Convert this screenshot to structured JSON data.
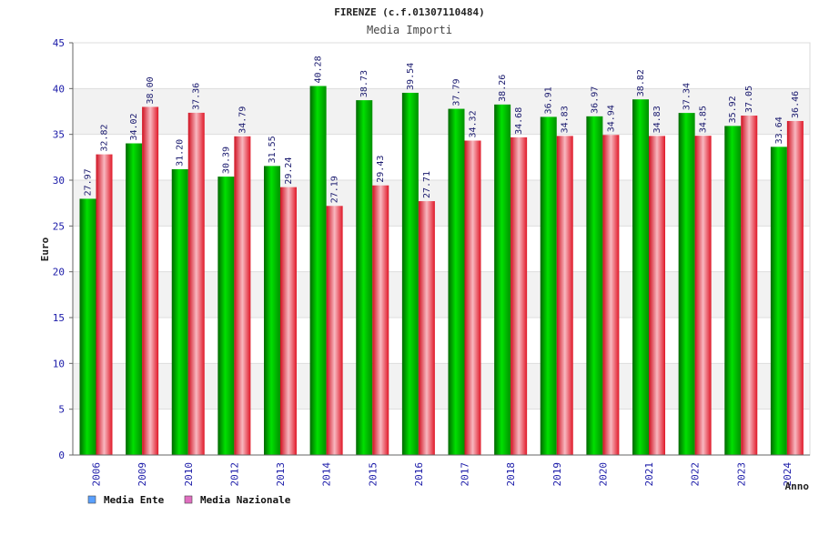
{
  "chart_data": {
    "type": "bar",
    "title": "FIRENZE (c.f.01307110484)",
    "subtitle": "Media Importi",
    "xlabel": "Anno",
    "ylabel": "Euro",
    "ylim": [
      0,
      45
    ],
    "yticks": [
      0,
      5,
      10,
      15,
      20,
      25,
      30,
      35,
      40,
      45
    ],
    "grid": true,
    "legend_position": "bottom-left",
    "categories": [
      "2006",
      "2009",
      "2010",
      "2012",
      "2013",
      "2014",
      "2015",
      "2016",
      "2017",
      "2018",
      "2019",
      "2020",
      "2021",
      "2022",
      "2023",
      "2024"
    ],
    "series": [
      {
        "name": "Media Ente",
        "color": "#00c000",
        "legend_color": "#5aa0ff",
        "values": [
          27.97,
          34.02,
          31.2,
          30.39,
          31.55,
          40.28,
          38.73,
          39.54,
          37.79,
          38.26,
          36.91,
          36.97,
          38.82,
          37.34,
          35.92,
          33.64
        ],
        "labels": [
          "27.97",
          "34.02",
          "31.20",
          "30.39",
          "31.55",
          "40.28",
          "38.73",
          "39.54",
          "37.79",
          "38.26",
          "36.91",
          "36.97",
          "38.82",
          "37.34",
          "35.92",
          "33.64"
        ]
      },
      {
        "name": "Media Nazionale",
        "color": "#e8182a",
        "legend_color": "#e06ec0",
        "values": [
          32.82,
          38.0,
          37.36,
          34.79,
          29.24,
          27.19,
          29.43,
          27.71,
          34.32,
          34.68,
          34.83,
          34.94,
          34.83,
          34.85,
          37.05,
          36.46
        ],
        "labels": [
          "32.82",
          "38.00",
          "37.36",
          "34.79",
          "29.24",
          "27.19",
          "29.43",
          "27.71",
          "34.32",
          "34.68",
          "34.83",
          "34.94",
          "34.83",
          "34.85",
          "37.05",
          "36.46"
        ]
      }
    ]
  }
}
